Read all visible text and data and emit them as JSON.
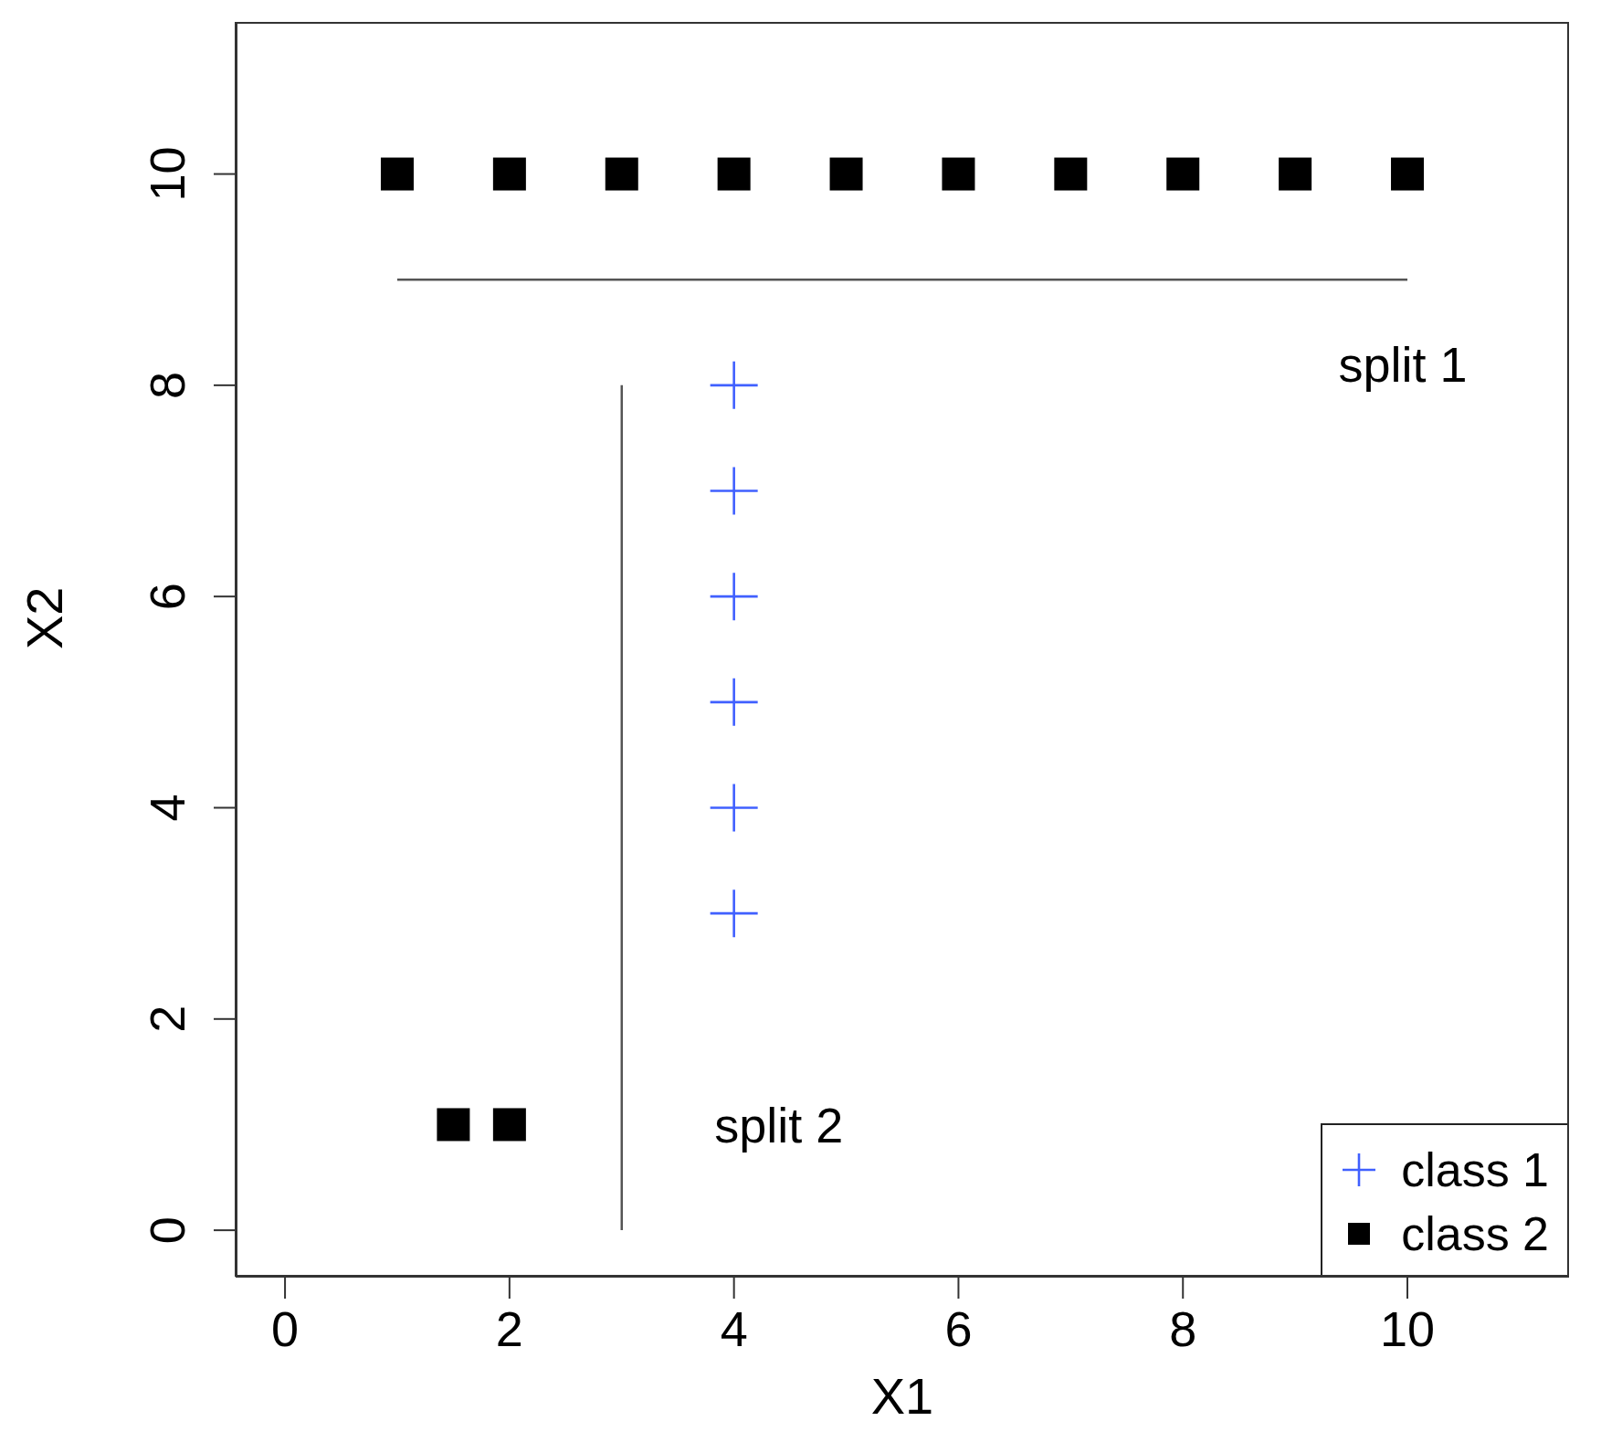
{
  "chart_data": {
    "type": "scatter",
    "xlabel": "X1",
    "ylabel": "X2",
    "xlim": [
      -0.44,
      11.44
    ],
    "ylim": [
      -0.44,
      11.44
    ],
    "xticks": [
      0,
      2,
      4,
      6,
      8,
      10
    ],
    "yticks": [
      0,
      2,
      4,
      6,
      8,
      10
    ],
    "grid": false,
    "legend": "bottom right",
    "series": [
      {
        "name": "class 1",
        "color": "#4060ff",
        "marker": "cross",
        "x": [
          4,
          4,
          4,
          4,
          4,
          4
        ],
        "values": [
          3,
          4,
          5,
          6,
          7,
          8
        ]
      },
      {
        "name": "class 2",
        "color": "#000000",
        "marker": "square",
        "x": [
          1,
          2,
          3,
          4,
          5,
          6,
          7,
          8,
          9,
          10,
          1.5,
          2
        ],
        "values": [
          10,
          10,
          10,
          10,
          10,
          10,
          10,
          10,
          10,
          10,
          1,
          1
        ]
      },
      {
        "type": "line",
        "color": "#555555",
        "x": [
          1,
          10
        ],
        "values": [
          9,
          9
        ]
      },
      {
        "type": "line",
        "color": "#555555",
        "x": [
          3,
          3
        ],
        "values": [
          0,
          8
        ]
      }
    ],
    "annotations": [
      "split 1",
      "split 2"
    ]
  }
}
